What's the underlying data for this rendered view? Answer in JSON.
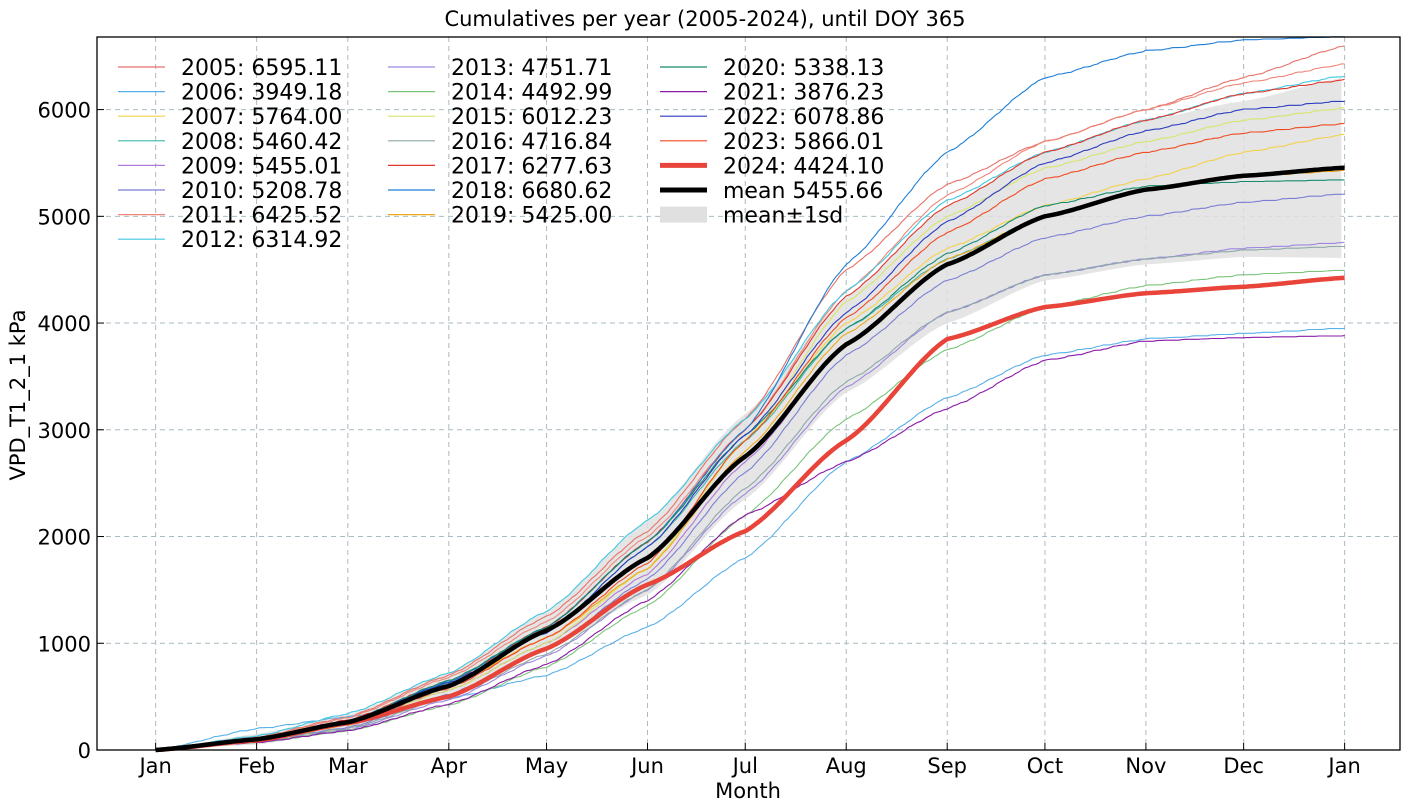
{
  "chart_data": {
    "type": "line",
    "title": "Cumulatives per year (2005-2024), until DOY 365",
    "xlabel": "Month",
    "ylabel": "VPD_T1_2_1  kPa",
    "x_ticks": [
      "Jan",
      "Feb",
      "Mar",
      "Apr",
      "May",
      "Jun",
      "Jul",
      "Aug",
      "Sep",
      "Oct",
      "Nov",
      "Dec",
      "Jan"
    ],
    "x_tick_doy": [
      1,
      32,
      60,
      91,
      121,
      152,
      182,
      213,
      244,
      274,
      305,
      335,
      366
    ],
    "xlim": [
      -17,
      383
    ],
    "ylim": [
      0,
      6680
    ],
    "y_ticks": [
      0,
      1000,
      2000,
      3000,
      4000,
      5000,
      6000
    ],
    "grid": true,
    "legend_position": "top-left",
    "anchor_doy": [
      1,
      32,
      60,
      91,
      121,
      152,
      182,
      213,
      244,
      274,
      305,
      335,
      366
    ],
    "series": [
      {
        "name": "2005",
        "label": "2005: 6595.11",
        "color": "#e8726a",
        "width": 1.1,
        "values": [
          0,
          120,
          310,
          700,
          1250,
          2050,
          3100,
          4500,
          5300,
          5700,
          6000,
          6300,
          6595
        ]
      },
      {
        "name": "2006",
        "label": "2006: 3949.18",
        "color": "#5ab0e8",
        "width": 1.1,
        "values": [
          0,
          200,
          310,
          480,
          700,
          1150,
          1800,
          2700,
          3300,
          3700,
          3850,
          3900,
          3949
        ]
      },
      {
        "name": "2007",
        "label": "2007: 5764.00",
        "color": "#f3d24a",
        "width": 1.1,
        "values": [
          0,
          90,
          250,
          600,
          1050,
          1700,
          2900,
          4000,
          4700,
          5100,
          5350,
          5600,
          5764
        ]
      },
      {
        "name": "2008",
        "label": "2008: 5460.42",
        "color": "#3fb8a8",
        "width": 1.1,
        "values": [
          0,
          100,
          260,
          620,
          1100,
          1900,
          2900,
          3950,
          4600,
          5000,
          5250,
          5380,
          5460
        ]
      },
      {
        "name": "2009",
        "label": "2009: 5455.01",
        "color": "#b27ad6",
        "width": 1.1,
        "values": [
          0,
          90,
          240,
          560,
          1000,
          1650,
          2700,
          3800,
          4550,
          5000,
          5250,
          5380,
          5455
        ]
      },
      {
        "name": "2010",
        "label": "2010: 5208.78",
        "color": "#7b7fd4",
        "width": 1.1,
        "values": [
          0,
          80,
          210,
          520,
          950,
          1600,
          2600,
          3700,
          4400,
          4800,
          5000,
          5130,
          5208
        ]
      },
      {
        "name": "2011",
        "label": "2011: 6425.52",
        "color": "#f0867a",
        "width": 1.1,
        "values": [
          0,
          110,
          300,
          680,
          1200,
          2000,
          3000,
          4300,
          5200,
          5700,
          6000,
          6250,
          6425
        ]
      },
      {
        "name": "2012",
        "label": "2012: 6314.92",
        "color": "#40c8e0",
        "width": 1.1,
        "values": [
          0,
          130,
          340,
          720,
          1300,
          2150,
          3100,
          4300,
          5150,
          5600,
          5900,
          6150,
          6314
        ]
      },
      {
        "name": "2013",
        "label": "2013: 4751.71",
        "color": "#9d87e0",
        "width": 1.1,
        "values": [
          0,
          70,
          190,
          470,
          880,
          1500,
          2400,
          3400,
          4100,
          4450,
          4600,
          4700,
          4751
        ]
      },
      {
        "name": "2014",
        "label": "2014: 4492.99",
        "color": "#7cc47a",
        "width": 1.1,
        "values": [
          0,
          70,
          180,
          420,
          780,
          1350,
          2200,
          3100,
          3750,
          4150,
          4350,
          4450,
          4492
        ]
      },
      {
        "name": "2015",
        "label": "2015: 6012.23",
        "color": "#d8e56a",
        "width": 1.1,
        "values": [
          0,
          80,
          230,
          560,
          1000,
          1700,
          2900,
          4200,
          5000,
          5450,
          5700,
          5900,
          6012
        ]
      },
      {
        "name": "2016",
        "label": "2016: 4716.84",
        "color": "#8fa8a8",
        "width": 1.1,
        "values": [
          0,
          80,
          200,
          490,
          900,
          1500,
          2450,
          3450,
          4100,
          4450,
          4600,
          4680,
          4716
        ]
      },
      {
        "name": "2017",
        "label": "2017: 6277.63",
        "color": "#e0382c",
        "width": 1.1,
        "values": [
          0,
          100,
          280,
          640,
          1150,
          1950,
          3000,
          4250,
          5100,
          5600,
          5900,
          6150,
          6277
        ]
      },
      {
        "name": "2018",
        "label": "2018: 6680.62",
        "color": "#1f7fd6",
        "width": 1.1,
        "values": [
          0,
          100,
          270,
          640,
          1150,
          1950,
          3000,
          4550,
          5600,
          6300,
          6550,
          6650,
          6680
        ]
      },
      {
        "name": "2019",
        "label": "2019: 5425.00",
        "color": "#f0a81c",
        "width": 1.1,
        "values": [
          0,
          90,
          240,
          600,
          1050,
          1700,
          2800,
          3900,
          4600,
          5000,
          5250,
          5370,
          5425
        ]
      },
      {
        "name": "2020",
        "label": "2020: 5338.13",
        "color": "#168a6c",
        "width": 1.1,
        "values": [
          0,
          100,
          270,
          650,
          1150,
          1950,
          2950,
          3950,
          4650,
          5100,
          5280,
          5320,
          5338
        ]
      },
      {
        "name": "2021",
        "label": "2021: 3876.23",
        "color": "#8b1aa8",
        "width": 1.1,
        "values": [
          0,
          70,
          180,
          430,
          800,
          1400,
          2200,
          2700,
          3200,
          3650,
          3830,
          3860,
          3876
        ]
      },
      {
        "name": "2022",
        "label": "2022: 6078.86",
        "color": "#2c3cc0",
        "width": 1.1,
        "values": [
          0,
          100,
          270,
          630,
          1100,
          1900,
          2950,
          4100,
          4950,
          5500,
          5800,
          6000,
          6078
        ]
      },
      {
        "name": "2023",
        "label": "2023: 5866.01",
        "color": "#f04a22",
        "width": 1.1,
        "values": [
          0,
          90,
          240,
          580,
          1050,
          1750,
          2900,
          4050,
          4850,
          5350,
          5600,
          5780,
          5866
        ]
      },
      {
        "name": "2024",
        "label": "2024: 4424.10",
        "color": "#e8443a",
        "width": 4.5,
        "values": [
          0,
          90,
          250,
          500,
          950,
          1550,
          2050,
          2900,
          3850,
          4150,
          4280,
          4340,
          4424
        ]
      },
      {
        "name": "mean",
        "label": "mean 5455.66",
        "color": "#000000",
        "width": 4.5,
        "values": [
          0,
          100,
          260,
          600,
          1120,
          1800,
          2750,
          3800,
          4550,
          5000,
          5250,
          5380,
          5455
        ]
      }
    ],
    "band": {
      "label": "mean±1sd",
      "color": "#e0e0e0",
      "upper": [
        0,
        150,
        330,
        720,
        1300,
        2150,
        3150,
        4250,
        5100,
        5600,
        5900,
        6080,
        6300
      ],
      "lower": [
        0,
        50,
        190,
        480,
        940,
        1450,
        2350,
        3350,
        4000,
        4400,
        4550,
        4620,
        4610
      ]
    }
  }
}
